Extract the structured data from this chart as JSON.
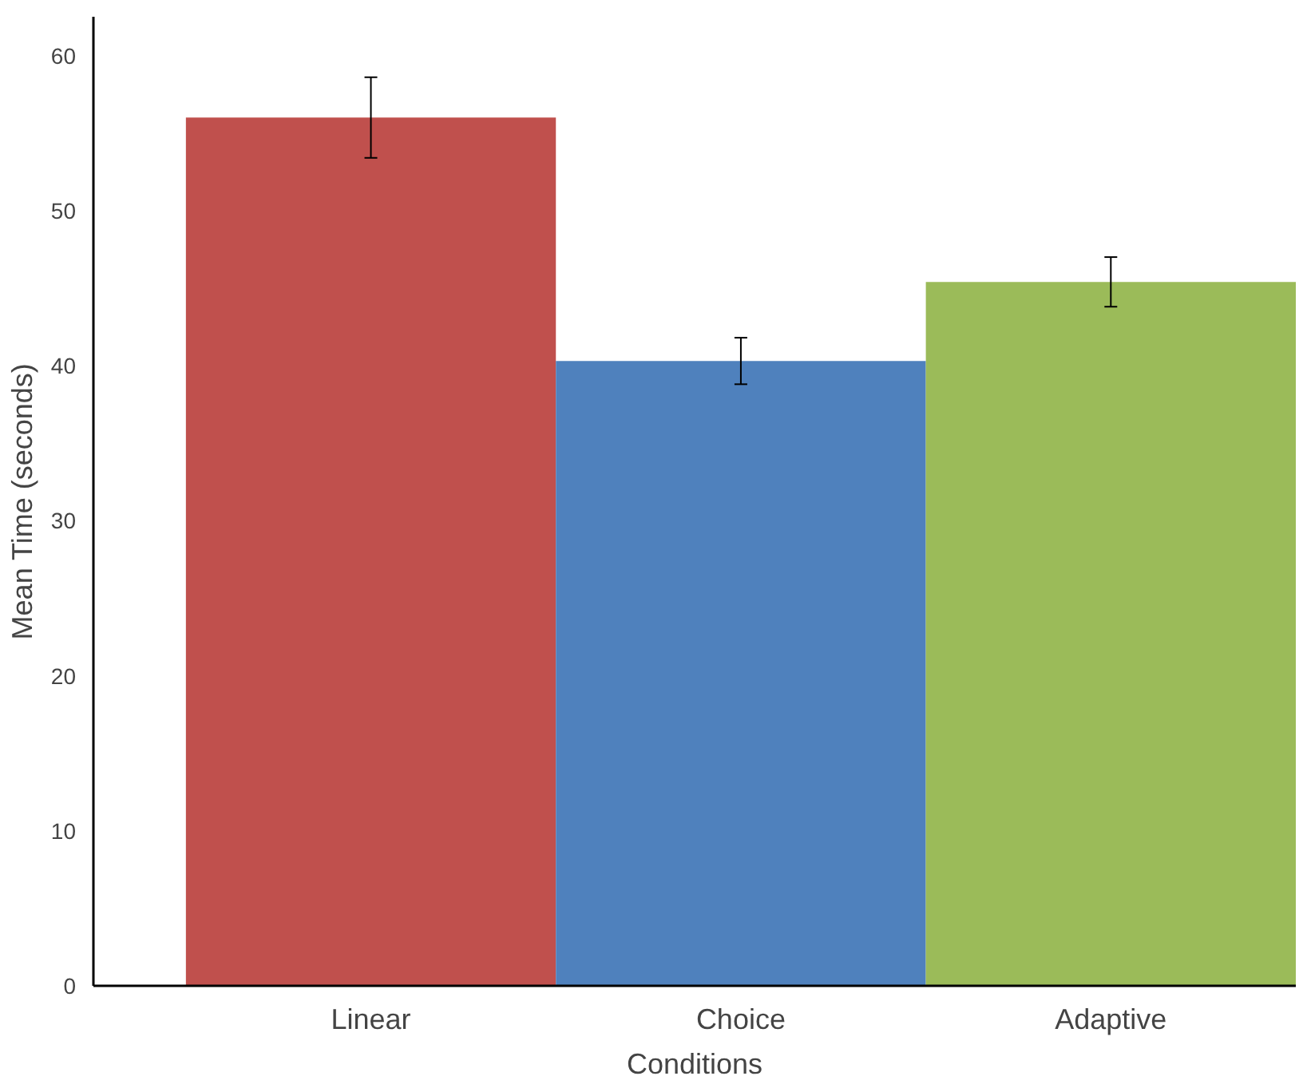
{
  "chart_data": {
    "type": "bar",
    "xlabel": "Conditions",
    "ylabel": "Mean Time (seconds)",
    "categories": [
      "Linear",
      "Choice",
      "Adaptive"
    ],
    "values": [
      56.0,
      40.3,
      45.4
    ],
    "colors": [
      "#c0504d",
      "#4f81bd",
      "#9bbb59"
    ],
    "errors": [
      2.6,
      1.5,
      1.6
    ],
    "ylim": [
      0,
      62.5
    ],
    "yticks": [
      0,
      10,
      20,
      30,
      40,
      50,
      60
    ],
    "grid": false
  }
}
